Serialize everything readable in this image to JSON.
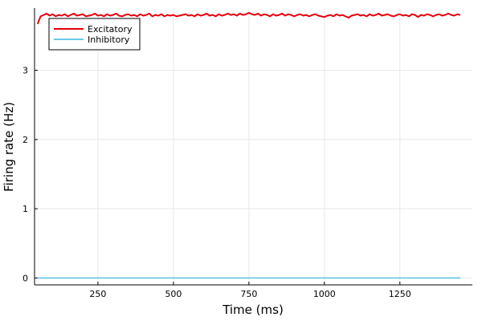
{
  "chart_data": {
    "type": "line",
    "xlabel": "Time (ms)",
    "ylabel": "Firing rate (Hz)",
    "xlim": [
      40,
      1490
    ],
    "ylim": [
      -0.1,
      3.9
    ],
    "xticks": [
      250,
      500,
      750,
      1000,
      1250
    ],
    "xtick_labels": [
      "250",
      "500",
      "750",
      "1000",
      "1250"
    ],
    "yticks": [
      0,
      1,
      2,
      3
    ],
    "ytick_labels": [
      "0",
      "1",
      "2",
      "3"
    ],
    "grid": true,
    "legend_position": "top-left",
    "series": [
      {
        "name": "Excitatory",
        "color": "#e4000c",
        "x": [
          50,
          60,
          70,
          80,
          90,
          100,
          110,
          120,
          130,
          140,
          150,
          160,
          170,
          180,
          190,
          200,
          210,
          220,
          230,
          240,
          250,
          260,
          270,
          280,
          290,
          300,
          310,
          320,
          330,
          340,
          350,
          360,
          370,
          380,
          390,
          400,
          410,
          420,
          430,
          440,
          450,
          460,
          470,
          480,
          490,
          500,
          510,
          520,
          530,
          540,
          550,
          560,
          570,
          580,
          590,
          600,
          610,
          620,
          630,
          640,
          650,
          660,
          670,
          680,
          690,
          700,
          710,
          720,
          730,
          740,
          750,
          760,
          770,
          780,
          790,
          800,
          810,
          820,
          830,
          840,
          850,
          860,
          870,
          880,
          890,
          900,
          910,
          920,
          930,
          940,
          950,
          960,
          970,
          980,
          990,
          1000,
          1010,
          1020,
          1030,
          1040,
          1050,
          1060,
          1070,
          1080,
          1090,
          1100,
          1110,
          1120,
          1130,
          1140,
          1150,
          1160,
          1170,
          1180,
          1190,
          1200,
          1210,
          1220,
          1230,
          1240,
          1250,
          1260,
          1270,
          1280,
          1290,
          1300,
          1310,
          1320,
          1330,
          1340,
          1350,
          1360,
          1370,
          1380,
          1390,
          1400,
          1410,
          1420,
          1430,
          1440,
          1450
        ],
        "values": [
          3.67,
          3.78,
          3.8,
          3.82,
          3.79,
          3.81,
          3.78,
          3.8,
          3.79,
          3.81,
          3.78,
          3.8,
          3.82,
          3.79,
          3.8,
          3.81,
          3.78,
          3.79,
          3.8,
          3.82,
          3.79,
          3.8,
          3.78,
          3.81,
          3.79,
          3.8,
          3.82,
          3.79,
          3.78,
          3.8,
          3.81,
          3.79,
          3.8,
          3.78,
          3.81,
          3.79,
          3.8,
          3.82,
          3.78,
          3.8,
          3.79,
          3.81,
          3.78,
          3.8,
          3.79,
          3.8,
          3.78,
          3.79,
          3.8,
          3.81,
          3.79,
          3.8,
          3.78,
          3.81,
          3.79,
          3.8,
          3.82,
          3.79,
          3.8,
          3.78,
          3.81,
          3.79,
          3.8,
          3.82,
          3.8,
          3.81,
          3.79,
          3.82,
          3.8,
          3.81,
          3.83,
          3.81,
          3.8,
          3.82,
          3.79,
          3.81,
          3.8,
          3.78,
          3.81,
          3.79,
          3.8,
          3.82,
          3.79,
          3.81,
          3.8,
          3.78,
          3.8,
          3.81,
          3.79,
          3.8,
          3.78,
          3.8,
          3.81,
          3.79,
          3.78,
          3.77,
          3.79,
          3.8,
          3.78,
          3.81,
          3.79,
          3.8,
          3.78,
          3.76,
          3.79,
          3.8,
          3.81,
          3.79,
          3.8,
          3.78,
          3.81,
          3.79,
          3.8,
          3.82,
          3.79,
          3.8,
          3.81,
          3.79,
          3.78,
          3.8,
          3.81,
          3.79,
          3.8,
          3.78,
          3.81,
          3.8,
          3.77,
          3.8,
          3.79,
          3.81,
          3.8,
          3.78,
          3.8,
          3.81,
          3.79,
          3.8,
          3.82,
          3.8,
          3.79,
          3.81,
          3.8
        ]
      },
      {
        "name": "Inhibitory",
        "color": "#6ccae7",
        "x": [
          50,
          1450
        ],
        "values": [
          0,
          0
        ]
      }
    ]
  }
}
